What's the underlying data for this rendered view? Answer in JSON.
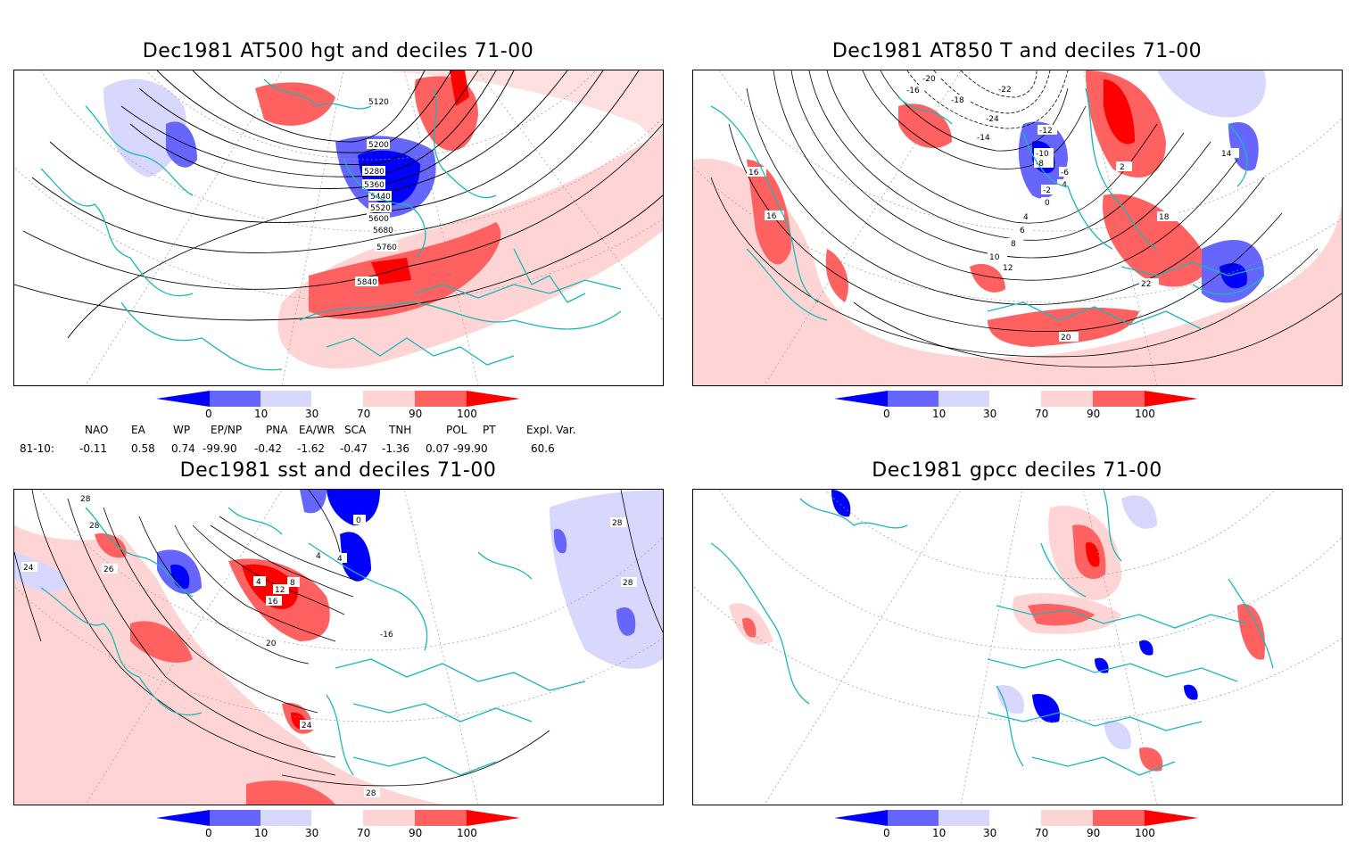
{
  "panels": [
    {
      "title": "Dec1981 AT500 hgt and deciles 71-00",
      "contour_labels": [
        "5120",
        "5200",
        "5280",
        "5360",
        "5440",
        "5520",
        "5600",
        "5680",
        "5760",
        "5840"
      ]
    },
    {
      "title": "Dec1981 AT850 T and deciles 71-00",
      "contour_labels": [
        "-20",
        "-16",
        "-18",
        "-22",
        "-24",
        "-14",
        "-12",
        "-10",
        "-8",
        "-6",
        "-4",
        "-2",
        "0",
        "2",
        "4",
        "6",
        "8",
        "10",
        "12",
        "14",
        "16",
        "18",
        "20",
        "22"
      ]
    },
    {
      "title": "Dec1981 sst and deciles 71-00",
      "contour_labels": [
        "28",
        "24",
        "26",
        "0",
        "4",
        "8",
        "12",
        "16",
        "20",
        "-16"
      ]
    },
    {
      "title": "Dec1981 gpcc deciles 71-00",
      "contour_labels": []
    }
  ],
  "colorbar": {
    "ticks": [
      "0",
      "10",
      "30",
      "70",
      "90",
      "100"
    ],
    "colors": [
      "#0000ff",
      "#6666ff",
      "#d8d8ff",
      "#ffffff",
      "#ffd4d4",
      "#ff6060",
      "#ff0000"
    ]
  },
  "indices": {
    "headers": [
      "NAO",
      "EA",
      "WP",
      "EP/NP",
      "PNA",
      "EA/WR",
      "SCA",
      "TNH",
      "POL",
      "PT",
      "Expl. Var."
    ],
    "row_label": "81-10:",
    "values": [
      "-0.11",
      "0.58",
      "0.74",
      "-99.90",
      "-0.42",
      "-1.62",
      "-0.47",
      "-1.36",
      "0.07",
      "-99.90",
      "60.6"
    ]
  }
}
